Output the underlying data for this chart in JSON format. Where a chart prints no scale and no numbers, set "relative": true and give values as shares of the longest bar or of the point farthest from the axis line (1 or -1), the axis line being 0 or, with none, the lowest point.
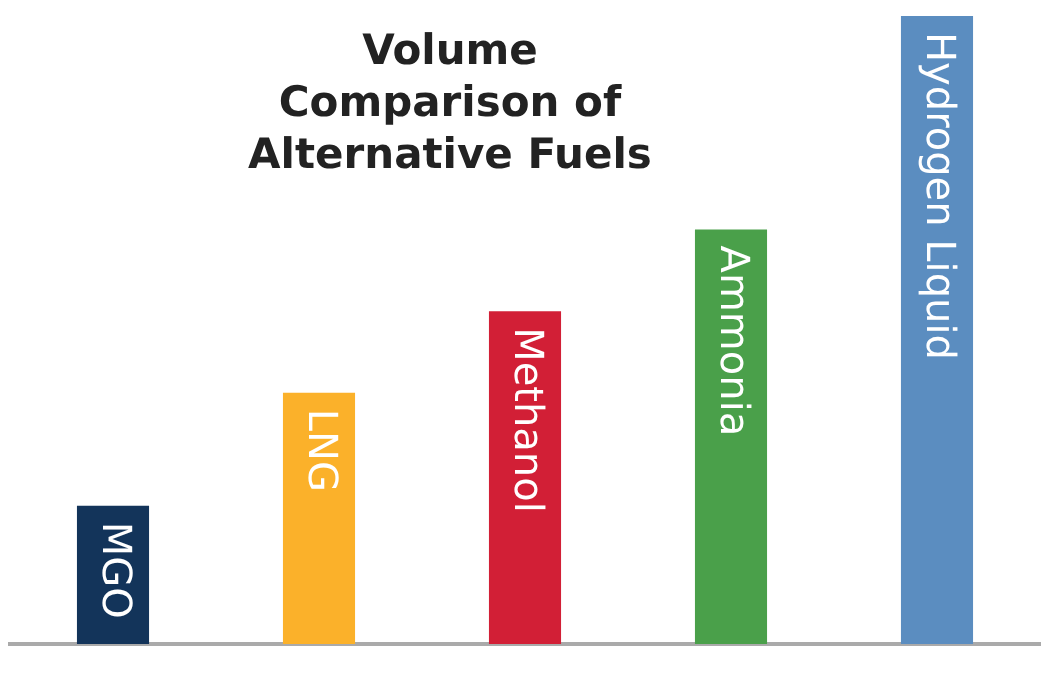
{
  "chart_data": {
    "type": "bar",
    "title": "Volume Comparison of Alternative Fuels",
    "categories": [
      "MGO",
      "LNG",
      "Methanol",
      "Ammonia",
      "Hydrogen Liquid"
    ],
    "values": [
      0.22,
      0.4,
      0.53,
      0.66,
      1
    ],
    "colors": [
      "#13345a",
      "#fbb12a",
      "#d21f36",
      "#4aa04a",
      "#5b8dc0"
    ],
    "relative": true,
    "grid": false,
    "legend": false
  }
}
